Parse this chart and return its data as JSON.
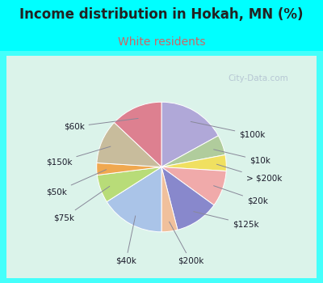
{
  "title": "Income distribution in Hokah, MN (%)",
  "subtitle": "White residents",
  "title_color": "#222222",
  "subtitle_color": "#cc6666",
  "bg_outer": "#00ffff",
  "labels": [
    "$100k",
    "$10k",
    "> $200k",
    "$20k",
    "$125k",
    "$200k",
    "$40k",
    "$75k",
    "$50k",
    "$150k",
    "$60k"
  ],
  "values": [
    17,
    5,
    4,
    9,
    11,
    4,
    16,
    7,
    3,
    11,
    13
  ],
  "colors": [
    "#b0a8d8",
    "#b0cc9c",
    "#f0e060",
    "#f0aaaa",
    "#8888cc",
    "#f0c09c",
    "#aac4e8",
    "#b8dc78",
    "#f0a850",
    "#c8bc9c",
    "#dd8090"
  ],
  "startangle": 90,
  "watermark": "City-Data.com"
}
